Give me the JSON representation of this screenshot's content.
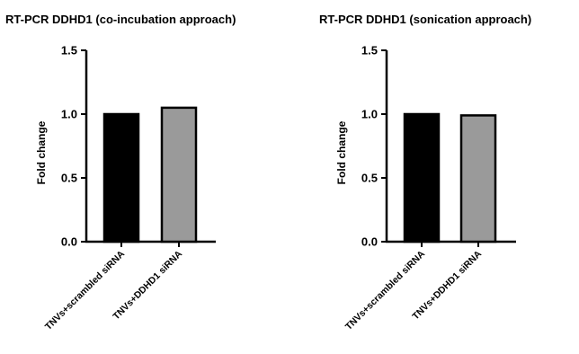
{
  "chart_data": [
    {
      "type": "bar",
      "title": "RT-PCR DDHD1 (co-incubation approach)",
      "ylabel": "Fold change",
      "xlabel": "",
      "ylim": [
        0,
        1.5
      ],
      "yticks": [
        "0.0",
        "0.5",
        "1.0",
        "1.5"
      ],
      "categories": [
        "TNVs+scrambled siRNA",
        "TNVs+DDHD1 siRNA"
      ],
      "values": [
        1.0,
        1.05
      ],
      "colors": [
        "#000000",
        "#9a9a9a"
      ],
      "grid": false,
      "legend": "none"
    },
    {
      "type": "bar",
      "title": "RT-PCR DDHD1 (sonication approach)",
      "ylabel": "Fold change",
      "xlabel": "",
      "ylim": [
        0,
        1.5
      ],
      "yticks": [
        "0.0",
        "0.5",
        "1.0",
        "1.5"
      ],
      "categories": [
        "TNVs+scrambled siRNA",
        "TNVs+DDHD1 siRNA"
      ],
      "values": [
        1.0,
        0.99
      ],
      "colors": [
        "#000000",
        "#9a9a9a"
      ],
      "grid": false,
      "legend": "none"
    }
  ]
}
